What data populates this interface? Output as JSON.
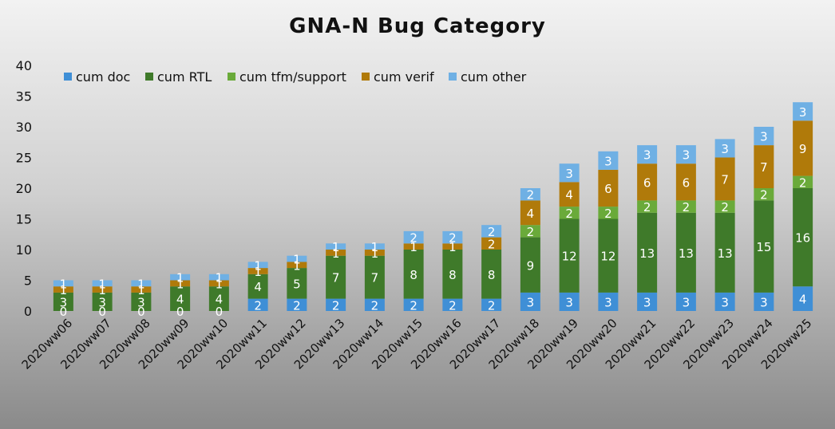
{
  "chart_data": {
    "type": "bar",
    "stacked": true,
    "title": "GNA-N Bug Category",
    "xlabel": "",
    "ylabel": "",
    "ylim": [
      0,
      40
    ],
    "yticks": [
      0,
      5,
      10,
      15,
      20,
      25,
      30,
      35,
      40
    ],
    "grid": false,
    "legend_position": "top-left",
    "categories": [
      "2020ww06",
      "2020ww07",
      "2020ww08",
      "2020ww09",
      "2020ww10",
      "2020ww11",
      "2020ww12",
      "2020ww13",
      "2020ww14",
      "2020ww15",
      "2020ww16",
      "2020ww17",
      "2020ww18",
      "2020ww19",
      "2020ww20",
      "2020ww21",
      "2020ww22",
      "2020ww23",
      "2020ww24",
      "2020ww25"
    ],
    "series": [
      {
        "name": "cum doc",
        "color": "#3f8fd6",
        "values": [
          0,
          0,
          0,
          0,
          0,
          2,
          2,
          2,
          2,
          2,
          2,
          2,
          3,
          3,
          3,
          3,
          3,
          3,
          3,
          4
        ]
      },
      {
        "name": "cum RTL",
        "color": "#3f7a2a",
        "values": [
          3,
          3,
          3,
          4,
          4,
          4,
          5,
          7,
          7,
          8,
          8,
          8,
          9,
          12,
          12,
          13,
          13,
          13,
          15,
          16
        ]
      },
      {
        "name": "cum tfm/support",
        "color": "#6aaa3a",
        "values": [
          0,
          0,
          0,
          0,
          0,
          0,
          0,
          0,
          0,
          0,
          0,
          0,
          2,
          2,
          2,
          2,
          2,
          2,
          2,
          2
        ]
      },
      {
        "name": "cum verif",
        "color": "#b07a0a",
        "values": [
          1,
          1,
          1,
          1,
          1,
          1,
          1,
          1,
          1,
          1,
          1,
          2,
          4,
          4,
          6,
          6,
          6,
          7,
          7,
          9
        ]
      },
      {
        "name": "cum other",
        "color": "#6fb0e4",
        "values": [
          1,
          1,
          1,
          1,
          1,
          1,
          1,
          1,
          1,
          2,
          2,
          2,
          2,
          3,
          3,
          3,
          3,
          3,
          3,
          3
        ]
      }
    ]
  }
}
